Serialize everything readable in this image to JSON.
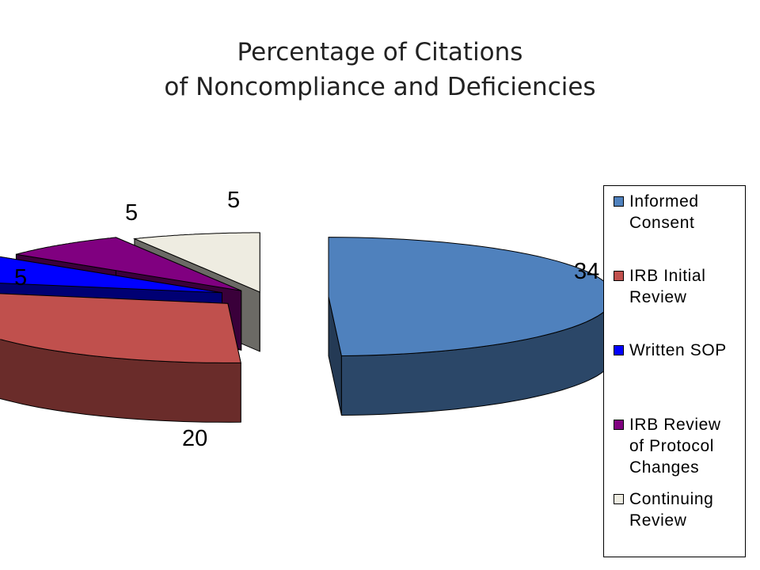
{
  "title": {
    "line1": "Percentage of Citations",
    "line2": "of Noncompliance and Deficiencies"
  },
  "chart_data": {
    "type": "pie",
    "title": "Percentage of Citations of Noncompliance and Deficiencies",
    "categories": [
      "Informed Consent",
      "IRB Initial Review",
      "Written SOP",
      "IRB Review of Protocol Changes",
      "Continuing Review"
    ],
    "values": [
      34,
      20,
      5,
      5,
      5
    ],
    "colors": [
      "#4f81bd",
      "#c0504d",
      "#0000ff",
      "#800080",
      "#eeece1"
    ],
    "exploded": true,
    "three_d": true,
    "legend": "right",
    "legend_items": [
      {
        "label_lines": [
          "Informed",
          "Consent"
        ],
        "color": "#4f81bd"
      },
      {
        "label_lines": [
          "IRB Initial",
          "Review"
        ],
        "color": "#c0504d"
      },
      {
        "label_lines": [
          "Written SOP"
        ],
        "color": "#0000ff"
      },
      {
        "label_lines": [
          "IRB Review",
          "of Protocol",
          "Changes"
        ],
        "color": "#800080"
      },
      {
        "label_lines": [
          "Continuing",
          "Review"
        ],
        "color": "#eeece1"
      }
    ]
  }
}
